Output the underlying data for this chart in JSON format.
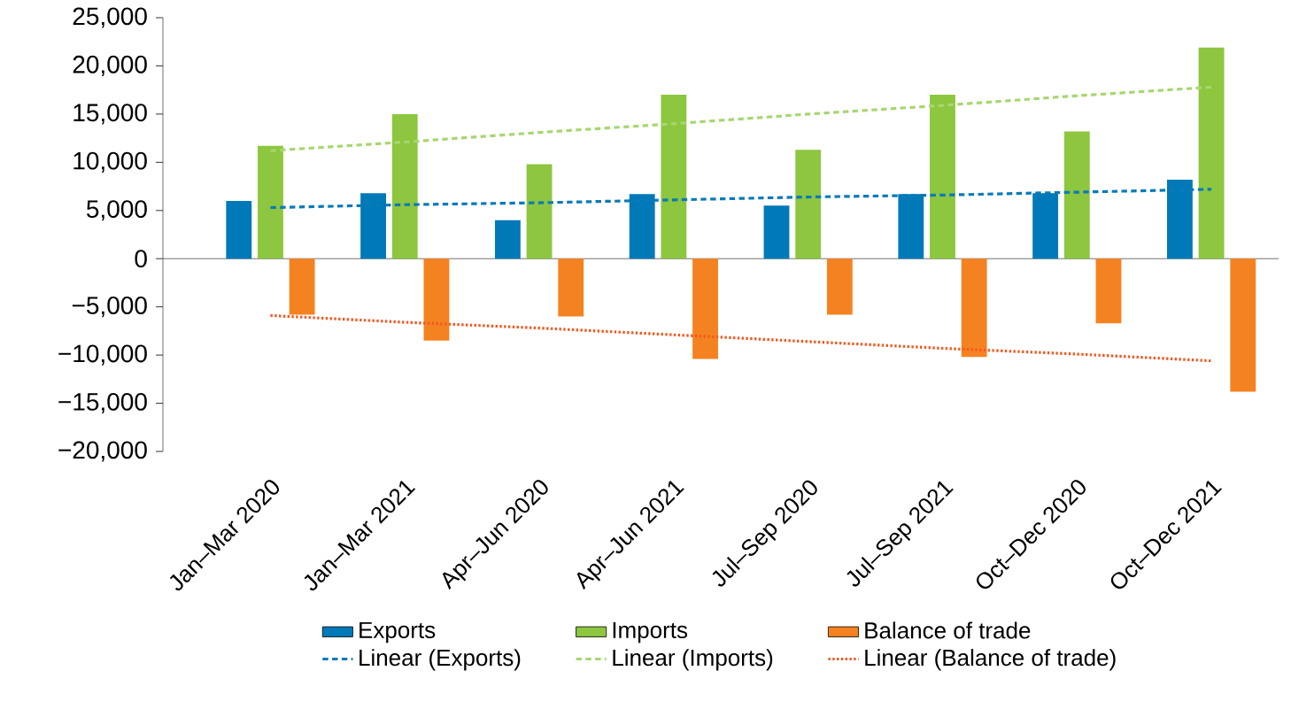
{
  "chart_data": {
    "type": "bar",
    "categories": [
      "Jan–Mar 2020",
      "Jan–Mar 2021",
      "Apr–Jun 2020",
      "Apr–Jun 2021",
      "Jul–Sep 2020",
      "Jul–Sep 2021",
      "Oct–Dec 2020",
      "Oct–Dec 2021"
    ],
    "series": [
      {
        "name": "Exports",
        "color": "#0079b8",
        "values": [
          6000,
          6800,
          4000,
          6700,
          5500,
          6700,
          6800,
          8200
        ]
      },
      {
        "name": "Imports",
        "color": "#8dc63f",
        "values": [
          11700,
          15000,
          9800,
          17000,
          11300,
          17000,
          13200,
          21900
        ]
      },
      {
        "name": "Balance of trade",
        "color": "#f58220",
        "values": [
          -5800,
          -8500,
          -6000,
          -10400,
          -5800,
          -10200,
          -6700,
          -13800
        ]
      },
      {
        "name": "Linear (Exports)",
        "type": "line",
        "line_style": "dashed",
        "color": "#0a7ab8",
        "values": [
          5300,
          5600,
          5800,
          6100,
          6400,
          6600,
          6900,
          7200
        ]
      },
      {
        "name": "Linear (Imports)",
        "type": "line",
        "line_style": "dashed",
        "color": "#a8d672",
        "values": [
          11200,
          12100,
          13100,
          14000,
          15000,
          15900,
          16900,
          17800
        ]
      },
      {
        "name": "Linear (Balance of trade)",
        "type": "line",
        "line_style": "dotted",
        "color": "#f15a22",
        "values": [
          -5900,
          -6600,
          -7200,
          -7900,
          -8600,
          -9300,
          -9900,
          -10600
        ]
      }
    ],
    "ylim": [
      -20000,
      25000
    ],
    "yticks": [
      {
        "value": -20000,
        "label": "−20,000"
      },
      {
        "value": -15000,
        "label": "−15,000"
      },
      {
        "value": -10000,
        "label": "−10,000"
      },
      {
        "value": -5000,
        "label": "−5,000"
      },
      0,
      {
        "value": 5000,
        "label": "5,000"
      },
      {
        "value": 10000,
        "label": "10,000"
      },
      {
        "value": 15000,
        "label": "15,000"
      },
      {
        "value": 20000,
        "label": "20,000"
      },
      {
        "value": 25000,
        "label": "25,000"
      }
    ],
    "legend": "bottom"
  }
}
